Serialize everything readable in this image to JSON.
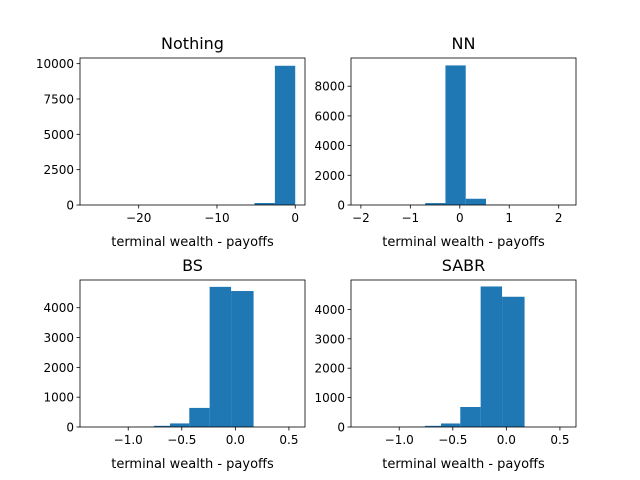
{
  "chart_data": [
    {
      "type": "bar",
      "title": "Nothing",
      "xlabel": "terminal wealth - payoffs",
      "ylabel": "",
      "xlim": [
        -27.5,
        1.25
      ],
      "ylim": [
        0,
        10400
      ],
      "xticks": [
        -20,
        -10,
        0
      ],
      "xtick_labels": [
        "−20",
        "−10",
        "0"
      ],
      "yticks": [
        0,
        2500,
        5000,
        7500,
        10000
      ],
      "ytick_labels": [
        "0",
        "2500",
        "5000",
        "7500",
        "10000"
      ],
      "bars": [
        {
          "x0": -26.2,
          "x1": -23.6,
          "value": 1
        },
        {
          "x0": -23.6,
          "x1": -21.0,
          "value": 0
        },
        {
          "x0": -21.0,
          "x1": -18.3,
          "value": 0
        },
        {
          "x0": -18.3,
          "x1": -15.7,
          "value": 0
        },
        {
          "x0": -15.7,
          "x1": -13.1,
          "value": 0
        },
        {
          "x0": -13.1,
          "x1": -10.4,
          "value": 1
        },
        {
          "x0": -10.4,
          "x1": -7.8,
          "value": 2
        },
        {
          "x0": -7.8,
          "x1": -5.2,
          "value": 8
        },
        {
          "x0": -5.2,
          "x1": -2.6,
          "value": 140
        },
        {
          "x0": -2.6,
          "x1": 0.0,
          "value": 9850
        }
      ],
      "color": "#1f77b4",
      "grid": false
    },
    {
      "type": "bar",
      "title": "NN",
      "xlabel": "terminal wealth - payoffs",
      "ylabel": "",
      "xlim": [
        -2.2,
        2.35
      ],
      "ylim": [
        0,
        9900
      ],
      "xticks": [
        -2,
        -1,
        0,
        1,
        2
      ],
      "xtick_labels": [
        "−2",
        "−1",
        "0",
        "1",
        "2"
      ],
      "yticks": [
        0,
        2000,
        4000,
        6000,
        8000
      ],
      "ytick_labels": [
        "0",
        "2000",
        "4000",
        "6000",
        "8000"
      ],
      "bars": [
        {
          "x0": -1.99,
          "x1": -1.58,
          "value": 1
        },
        {
          "x0": -1.58,
          "x1": -1.17,
          "value": 2
        },
        {
          "x0": -1.17,
          "x1": -0.7,
          "value": 10
        },
        {
          "x0": -0.7,
          "x1": -0.29,
          "value": 130
        },
        {
          "x0": -0.29,
          "x1": 0.12,
          "value": 9400
        },
        {
          "x0": 0.12,
          "x1": 0.53,
          "value": 420
        },
        {
          "x0": 0.53,
          "x1": 0.94,
          "value": 25
        },
        {
          "x0": 0.94,
          "x1": 1.35,
          "value": 8
        },
        {
          "x0": 1.35,
          "x1": 1.76,
          "value": 3
        },
        {
          "x0": 1.76,
          "x1": 2.14,
          "value": 1
        }
      ],
      "color": "#1f77b4",
      "grid": false
    },
    {
      "type": "bar",
      "title": "BS",
      "xlabel": "terminal wealth - payoffs",
      "ylabel": "",
      "xlim": [
        -1.45,
        0.65
      ],
      "ylim": [
        0,
        4930
      ],
      "xticks": [
        -1.0,
        -0.5,
        0.0,
        0.5
      ],
      "xtick_labels": [
        "−1.0",
        "−0.5",
        "0.0",
        "0.5"
      ],
      "yticks": [
        0,
        1000,
        2000,
        3000,
        4000
      ],
      "ytick_labels": [
        "0",
        "1000",
        "2000",
        "3000",
        "4000"
      ],
      "bars": [
        {
          "x0": -1.36,
          "x1": -1.21,
          "value": 1
        },
        {
          "x0": -1.21,
          "x1": -1.06,
          "value": 2
        },
        {
          "x0": -1.06,
          "x1": -0.91,
          "value": 5
        },
        {
          "x0": -0.91,
          "x1": -0.76,
          "value": 10
        },
        {
          "x0": -0.76,
          "x1": -0.61,
          "value": 40
        },
        {
          "x0": -0.61,
          "x1": -0.43,
          "value": 120
        },
        {
          "x0": -0.43,
          "x1": -0.24,
          "value": 640
        },
        {
          "x0": -0.24,
          "x1": -0.04,
          "value": 4700
        },
        {
          "x0": -0.04,
          "x1": 0.17,
          "value": 4560
        },
        {
          "x0": 0.17,
          "x1": 0.56,
          "value": 2
        }
      ],
      "color": "#1f77b4",
      "grid": false
    },
    {
      "type": "bar",
      "title": "SABR",
      "xlabel": "terminal wealth - payoffs",
      "ylabel": "",
      "xlim": [
        -1.45,
        0.65
      ],
      "ylim": [
        0,
        5000
      ],
      "xticks": [
        -1.0,
        -0.5,
        0.0,
        0.5
      ],
      "xtick_labels": [
        "−1.0",
        "−0.5",
        "0.0",
        "0.5"
      ],
      "yticks": [
        0,
        1000,
        2000,
        3000,
        4000
      ],
      "ytick_labels": [
        "0",
        "1000",
        "2000",
        "3000",
        "4000"
      ],
      "bars": [
        {
          "x0": -1.36,
          "x1": -1.21,
          "value": 1
        },
        {
          "x0": -1.21,
          "x1": -1.06,
          "value": 2
        },
        {
          "x0": -1.06,
          "x1": -0.91,
          "value": 5
        },
        {
          "x0": -0.91,
          "x1": -0.76,
          "value": 10
        },
        {
          "x0": -0.76,
          "x1": -0.61,
          "value": 40
        },
        {
          "x0": -0.61,
          "x1": -0.43,
          "value": 120
        },
        {
          "x0": -0.43,
          "x1": -0.24,
          "value": 680
        },
        {
          "x0": -0.24,
          "x1": -0.04,
          "value": 4780
        },
        {
          "x0": -0.04,
          "x1": 0.17,
          "value": 4430
        },
        {
          "x0": 0.17,
          "x1": 0.56,
          "value": 2
        }
      ],
      "color": "#1f77b4",
      "grid": false
    }
  ]
}
